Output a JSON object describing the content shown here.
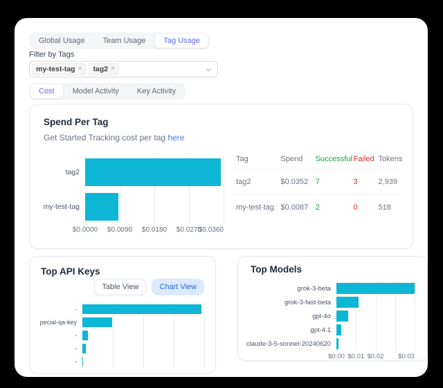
{
  "colors": {
    "bar": "#0db6d4",
    "accent_indigo": "#6366f1",
    "success_green": "#16a34a",
    "failed_red": "#dc2626",
    "link_blue": "#3b82f6",
    "chart_view_bg": "#dbeafe"
  },
  "usage_tabs": {
    "items": [
      {
        "label": "Global Usage",
        "active": false
      },
      {
        "label": "Team Usage",
        "active": false
      },
      {
        "label": "Tag Usage",
        "active": true
      }
    ]
  },
  "filter": {
    "label": "Filter by Tags",
    "tags": [
      {
        "name": "my-test-tag",
        "remove": "×"
      },
      {
        "name": "tag2",
        "remove": "×"
      }
    ]
  },
  "view_tabs": {
    "items": [
      {
        "label": "Cost",
        "active": true
      },
      {
        "label": "Model Activity",
        "active": false
      },
      {
        "label": "Key Activity",
        "active": false
      }
    ]
  },
  "spend_card": {
    "title": "Spend Per Tag",
    "subtitle": "Get Started Tracking cost per tag",
    "subtitle_link": "here",
    "table": {
      "headers": {
        "tag": "Tag",
        "spend": "Spend",
        "successful": "Successful",
        "failed": "Failed",
        "tokens": "Tokens"
      },
      "rows": [
        {
          "tag": "tag2",
          "spend": "$0.0352",
          "successful": "7",
          "failed": "3",
          "tokens": "2,939"
        },
        {
          "tag": "my-test-tag",
          "spend": "$0.0087",
          "successful": "2",
          "failed": "0",
          "tokens": "518"
        }
      ]
    }
  },
  "top_api_keys": {
    "title": "Top API Keys",
    "buttons": [
      {
        "label": "Table View",
        "active": false
      },
      {
        "label": "Chart View",
        "active": true
      }
    ]
  },
  "top_models": {
    "title": "Top Models"
  },
  "chart_data": [
    {
      "id": "spend_per_tag",
      "type": "bar",
      "orientation": "horizontal",
      "title": "Spend Per Tag",
      "categories": [
        "tag2",
        "my-test-tag"
      ],
      "values": [
        0.0352,
        0.0087
      ],
      "xlim": [
        0,
        0.036
      ],
      "grid_values": [
        0,
        0.009,
        0.018,
        0.027,
        0.036
      ],
      "ticks": [
        {
          "label": "$0.0000",
          "value": 0
        },
        {
          "label": "$0.0090",
          "value": 0.009
        },
        {
          "label": "$0.0180",
          "value": 0.018
        },
        {
          "label": "$0.0270",
          "value": 0.027
        },
        {
          "label": "$0.0360",
          "value": 0.036,
          "anchor": "end"
        }
      ],
      "bar_color": "#0db6d4",
      "grid": true,
      "legend": "none"
    },
    {
      "id": "top_api_keys",
      "type": "bar",
      "orientation": "horizontal",
      "title": "Top API Keys",
      "categories": [
        "-",
        "pecial-qa-key",
        "-",
        "-",
        "-"
      ],
      "values": [
        0.0352,
        0.0087,
        0.0017,
        0.001,
        0.0002
      ],
      "xlim": [
        0,
        0.036
      ],
      "grid_values": [
        0,
        0.009,
        0.018,
        0.027,
        0.036
      ],
      "ticks": [],
      "bar_color": "#0db6d4",
      "grid": true,
      "legend": "none",
      "note": "x-axis labels clipped by card edge"
    },
    {
      "id": "top_models",
      "type": "bar",
      "orientation": "horizontal",
      "title": "Top Models",
      "categories": [
        "grok-3-beta",
        "grok-3-fast-beta",
        "gpt-4o",
        "gpt-4.1",
        "claude-3-5-sonnet-20240620"
      ],
      "values": [
        0.031,
        0.0089,
        0.0047,
        0.0019,
        0.0007
      ],
      "xlim": [
        0,
        0.031
      ],
      "grid_values": [
        0,
        0.00775,
        0.0155,
        0.02325,
        0.031
      ],
      "ticks": [
        {
          "label": "$0.00",
          "value": 0
        },
        {
          "label": "$0.01",
          "value": 0.00775
        },
        {
          "label": "$0.02",
          "value": 0.0155
        },
        {
          "label": "$0.03",
          "value": 0.031,
          "anchor": "end"
        }
      ],
      "bar_color": "#0db6d4",
      "grid": true,
      "legend": "none"
    }
  ]
}
